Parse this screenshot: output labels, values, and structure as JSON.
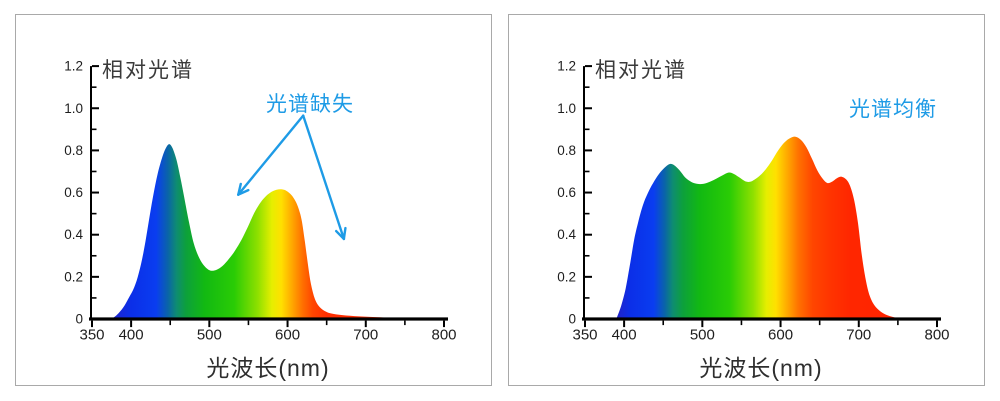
{
  "page": {
    "background": "#ffffff",
    "card_border": "#a9a9a9"
  },
  "colors": {
    "annotation_blue": "#1E9BE6",
    "axis": "#000000",
    "title_text": "#3a3a3a",
    "tick_text": "#1e1e1e"
  },
  "chart_data": [
    {
      "type": "area",
      "title": "相对光谱",
      "xlabel": "光波长(nm)",
      "ylabel": "",
      "xlim": [
        350,
        800
      ],
      "ylim": [
        0,
        1.2
      ],
      "grid": false,
      "x_ticks": [
        350,
        400,
        500,
        600,
        700,
        800
      ],
      "x_minor_ticks": [
        450,
        550,
        650,
        750
      ],
      "y_ticks": [
        0,
        0.2,
        0.4,
        0.6,
        0.8,
        1.0,
        1.2
      ],
      "y_tick_labels": [
        "0",
        "0.2",
        "0.4",
        "0.6",
        "0.8",
        "1.0",
        "1.2"
      ],
      "y_minor_ticks": [
        0.1,
        0.3,
        0.5,
        0.7,
        0.9,
        1.1
      ],
      "annotation": {
        "label": "光谱缺失",
        "color": "#1E9BE6",
        "arrows": [
          {
            "from": [
              620,
              0.965
            ],
            "to": [
              537,
              0.59
            ]
          },
          {
            "from": [
              620,
              0.965
            ],
            "to": [
              672,
              0.38
            ]
          }
        ]
      },
      "points": [
        [
          375,
          0
        ],
        [
          382,
          0.02
        ],
        [
          390,
          0.055
        ],
        [
          397,
          0.1
        ],
        [
          404,
          0.15
        ],
        [
          410,
          0.22
        ],
        [
          416,
          0.32
        ],
        [
          422,
          0.45
        ],
        [
          428,
          0.58
        ],
        [
          434,
          0.69
        ],
        [
          440,
          0.77
        ],
        [
          445,
          0.815
        ],
        [
          449,
          0.83
        ],
        [
          453,
          0.81
        ],
        [
          458,
          0.755
        ],
        [
          463,
          0.67
        ],
        [
          468,
          0.575
        ],
        [
          474,
          0.46
        ],
        [
          480,
          0.36
        ],
        [
          487,
          0.29
        ],
        [
          494,
          0.25
        ],
        [
          501,
          0.23
        ],
        [
          509,
          0.233
        ],
        [
          517,
          0.252
        ],
        [
          525,
          0.285
        ],
        [
          533,
          0.325
        ],
        [
          541,
          0.375
        ],
        [
          549,
          0.435
        ],
        [
          557,
          0.5
        ],
        [
          564,
          0.545
        ],
        [
          571,
          0.578
        ],
        [
          578,
          0.6
        ],
        [
          586,
          0.613
        ],
        [
          593,
          0.615
        ],
        [
          599,
          0.607
        ],
        [
          605,
          0.588
        ],
        [
          610,
          0.56
        ],
        [
          614,
          0.525
        ],
        [
          618,
          0.47
        ],
        [
          622,
          0.37
        ],
        [
          626,
          0.26
        ],
        [
          630,
          0.165
        ],
        [
          635,
          0.095
        ],
        [
          641,
          0.057
        ],
        [
          650,
          0.033
        ],
        [
          662,
          0.022
        ],
        [
          680,
          0.015
        ],
        [
          705,
          0.01
        ],
        [
          735,
          0.006
        ],
        [
          768,
          0.003
        ],
        [
          800,
          0.001
        ]
      ],
      "gradient_stops": [
        [
          372,
          "#2222C8"
        ],
        [
          400,
          "#0B2FE8"
        ],
        [
          432,
          "#0A3DF0"
        ],
        [
          447,
          "#0A64A8"
        ],
        [
          458,
          "#0E8C72"
        ],
        [
          470,
          "#0DA03C"
        ],
        [
          494,
          "#12B912"
        ],
        [
          532,
          "#2ACC05"
        ],
        [
          562,
          "#8FE000"
        ],
        [
          580,
          "#E6EE00"
        ],
        [
          592,
          "#FFE000"
        ],
        [
          606,
          "#FFA700"
        ],
        [
          619,
          "#FF7100"
        ],
        [
          632,
          "#FF4600"
        ],
        [
          650,
          "#FF2E00"
        ],
        [
          800,
          "#FF2600"
        ]
      ]
    },
    {
      "type": "area",
      "title": "相对光谱",
      "xlabel": "光波长(nm)",
      "ylabel": "",
      "xlim": [
        350,
        800
      ],
      "ylim": [
        0,
        1.2
      ],
      "grid": false,
      "x_ticks": [
        350,
        400,
        500,
        600,
        700,
        800
      ],
      "x_minor_ticks": [
        450,
        550,
        650,
        750
      ],
      "y_ticks": [
        0,
        0.2,
        0.4,
        0.6,
        0.8,
        1.0,
        1.2
      ],
      "y_tick_labels": [
        "0",
        "0.2",
        "0.4",
        "0.6",
        "0.8",
        "1.0",
        "1.2"
      ],
      "y_minor_ticks": [
        0.1,
        0.3,
        0.5,
        0.7,
        0.9,
        1.1
      ],
      "annotation": {
        "label": "光谱均衡",
        "color": "#1E9BE6",
        "arrows": []
      },
      "points": [
        [
          390,
          0
        ],
        [
          396,
          0.06
        ],
        [
          402,
          0.145
        ],
        [
          408,
          0.27
        ],
        [
          413,
          0.38
        ],
        [
          418,
          0.46
        ],
        [
          424,
          0.54
        ],
        [
          430,
          0.595
        ],
        [
          437,
          0.645
        ],
        [
          444,
          0.685
        ],
        [
          451,
          0.715
        ],
        [
          458,
          0.735
        ],
        [
          464,
          0.73
        ],
        [
          471,
          0.705
        ],
        [
          478,
          0.672
        ],
        [
          486,
          0.65
        ],
        [
          494,
          0.641
        ],
        [
          502,
          0.642
        ],
        [
          510,
          0.652
        ],
        [
          518,
          0.666
        ],
        [
          526,
          0.682
        ],
        [
          534,
          0.695
        ],
        [
          541,
          0.687
        ],
        [
          548,
          0.67
        ],
        [
          555,
          0.653
        ],
        [
          561,
          0.651
        ],
        [
          567,
          0.662
        ],
        [
          574,
          0.682
        ],
        [
          581,
          0.71
        ],
        [
          589,
          0.752
        ],
        [
          597,
          0.8
        ],
        [
          605,
          0.838
        ],
        [
          612,
          0.858
        ],
        [
          619,
          0.865
        ],
        [
          626,
          0.85
        ],
        [
          633,
          0.815
        ],
        [
          640,
          0.762
        ],
        [
          647,
          0.705
        ],
        [
          654,
          0.665
        ],
        [
          660,
          0.645
        ],
        [
          666,
          0.652
        ],
        [
          672,
          0.668
        ],
        [
          678,
          0.675
        ],
        [
          684,
          0.662
        ],
        [
          689,
          0.63
        ],
        [
          694,
          0.565
        ],
        [
          699,
          0.455
        ],
        [
          704,
          0.3
        ],
        [
          709,
          0.185
        ],
        [
          714,
          0.11
        ],
        [
          720,
          0.065
        ],
        [
          728,
          0.035
        ],
        [
          737,
          0.017
        ],
        [
          748,
          0.006
        ],
        [
          760,
          0.001
        ]
      ],
      "gradient_stops": [
        [
          390,
          "#2222C8"
        ],
        [
          408,
          "#0B2FE8"
        ],
        [
          438,
          "#0A3DF0"
        ],
        [
          452,
          "#0A64A8"
        ],
        [
          462,
          "#0E8C72"
        ],
        [
          475,
          "#0DA03C"
        ],
        [
          497,
          "#12B912"
        ],
        [
          535,
          "#2ACC05"
        ],
        [
          565,
          "#8FE000"
        ],
        [
          582,
          "#E6EE00"
        ],
        [
          594,
          "#FFE000"
        ],
        [
          609,
          "#FFA700"
        ],
        [
          623,
          "#FF7100"
        ],
        [
          641,
          "#FF4600"
        ],
        [
          665,
          "#FF3300"
        ],
        [
          690,
          "#FF2600"
        ],
        [
          800,
          "#FF2200"
        ]
      ]
    }
  ]
}
